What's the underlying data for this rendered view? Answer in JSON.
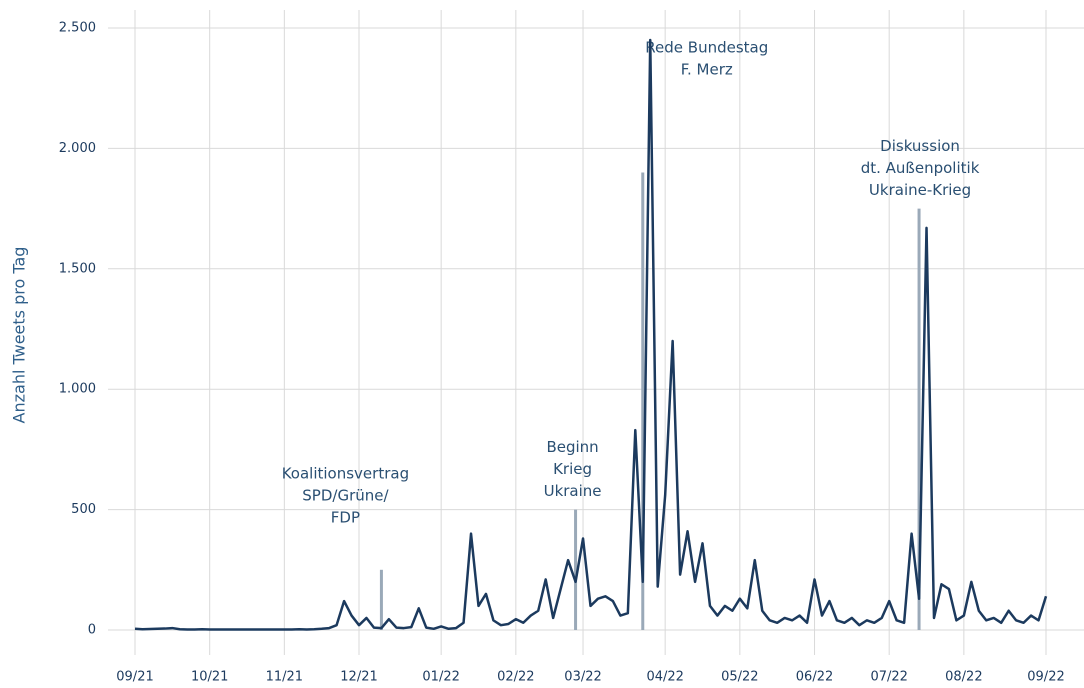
{
  "chart_data": {
    "type": "line",
    "y_label": "Anzahl Tweets pro Tag",
    "categories": [
      "09/21",
      null,
      null,
      null,
      null,
      null,
      null,
      null,
      null,
      null,
      "10/21",
      null,
      null,
      null,
      null,
      null,
      null,
      null,
      null,
      null,
      "11/21",
      null,
      null,
      null,
      null,
      null,
      null,
      null,
      null,
      null,
      "12/21",
      null,
      null,
      null,
      null,
      null,
      null,
      null,
      null,
      null,
      null,
      "01/22",
      null,
      null,
      null,
      null,
      null,
      null,
      null,
      null,
      null,
      "02/22",
      null,
      null,
      null,
      null,
      null,
      null,
      null,
      null,
      "03/22",
      null,
      null,
      null,
      null,
      null,
      null,
      null,
      null,
      null,
      null,
      "04/22",
      null,
      null,
      null,
      null,
      null,
      null,
      null,
      null,
      null,
      "05/22",
      null,
      null,
      null,
      null,
      null,
      null,
      null,
      null,
      null,
      "06/22",
      null,
      null,
      null,
      null,
      null,
      null,
      null,
      null,
      null,
      "07/22",
      null,
      null,
      null,
      null,
      null,
      null,
      null,
      null,
      null,
      "08/22",
      null,
      null,
      null,
      null,
      null,
      null,
      null,
      null,
      null,
      null,
      "09/22"
    ],
    "values": [
      5,
      3,
      4,
      5,
      6,
      8,
      3,
      2,
      2,
      3,
      2,
      2,
      2,
      2,
      2,
      2,
      2,
      2,
      2,
      2,
      2,
      2,
      3,
      2,
      3,
      5,
      8,
      20,
      120,
      60,
      20,
      50,
      10,
      8,
      45,
      10,
      8,
      12,
      90,
      10,
      5,
      15,
      5,
      8,
      30,
      400,
      100,
      150,
      40,
      20,
      25,
      45,
      30,
      60,
      80,
      210,
      50,
      170,
      290,
      200,
      380,
      100,
      130,
      140,
      120,
      60,
      70,
      830,
      200,
      2450,
      180,
      560,
      1200,
      230,
      410,
      200,
      360,
      100,
      60,
      100,
      80,
      130,
      90,
      290,
      80,
      40,
      30,
      50,
      40,
      60,
      30,
      210,
      60,
      120,
      40,
      30,
      50,
      20,
      40,
      30,
      50,
      120,
      40,
      30,
      400,
      130,
      1670,
      50,
      190,
      170,
      40,
      60,
      200,
      80,
      40,
      50,
      30,
      80,
      40,
      30,
      60,
      40,
      140
    ],
    "color": "#1c3a5e",
    "ylim": [
      0,
      2500
    ],
    "yticks": [
      0,
      500,
      {
        "value": 1000,
        "label": "1.000"
      },
      {
        "value": 1500,
        "label": "1.500"
      },
      {
        "value": 2000,
        "label": "2.000"
      },
      {
        "value": 2500,
        "label": "2.500"
      }
    ],
    "grid": true,
    "annotations": [
      {
        "lines": [
          "Koalitionsvertrag",
          "SPD/Grüne/",
          "FDP"
        ],
        "at": 33,
        "value": 250
      },
      {
        "lines": [
          "Beginn",
          "Krieg",
          "Ukraine"
        ],
        "at": 59,
        "value": 500
      },
      {
        "lines": [
          "Rede Bundestag",
          "F. Merz"
        ],
        "at": 68,
        "value": 1900
      },
      {
        "lines": [
          "Diskussion",
          "dt. Außenpolitik",
          "Ukraine-Krieg"
        ],
        "at": 105,
        "value": 1750
      }
    ]
  }
}
